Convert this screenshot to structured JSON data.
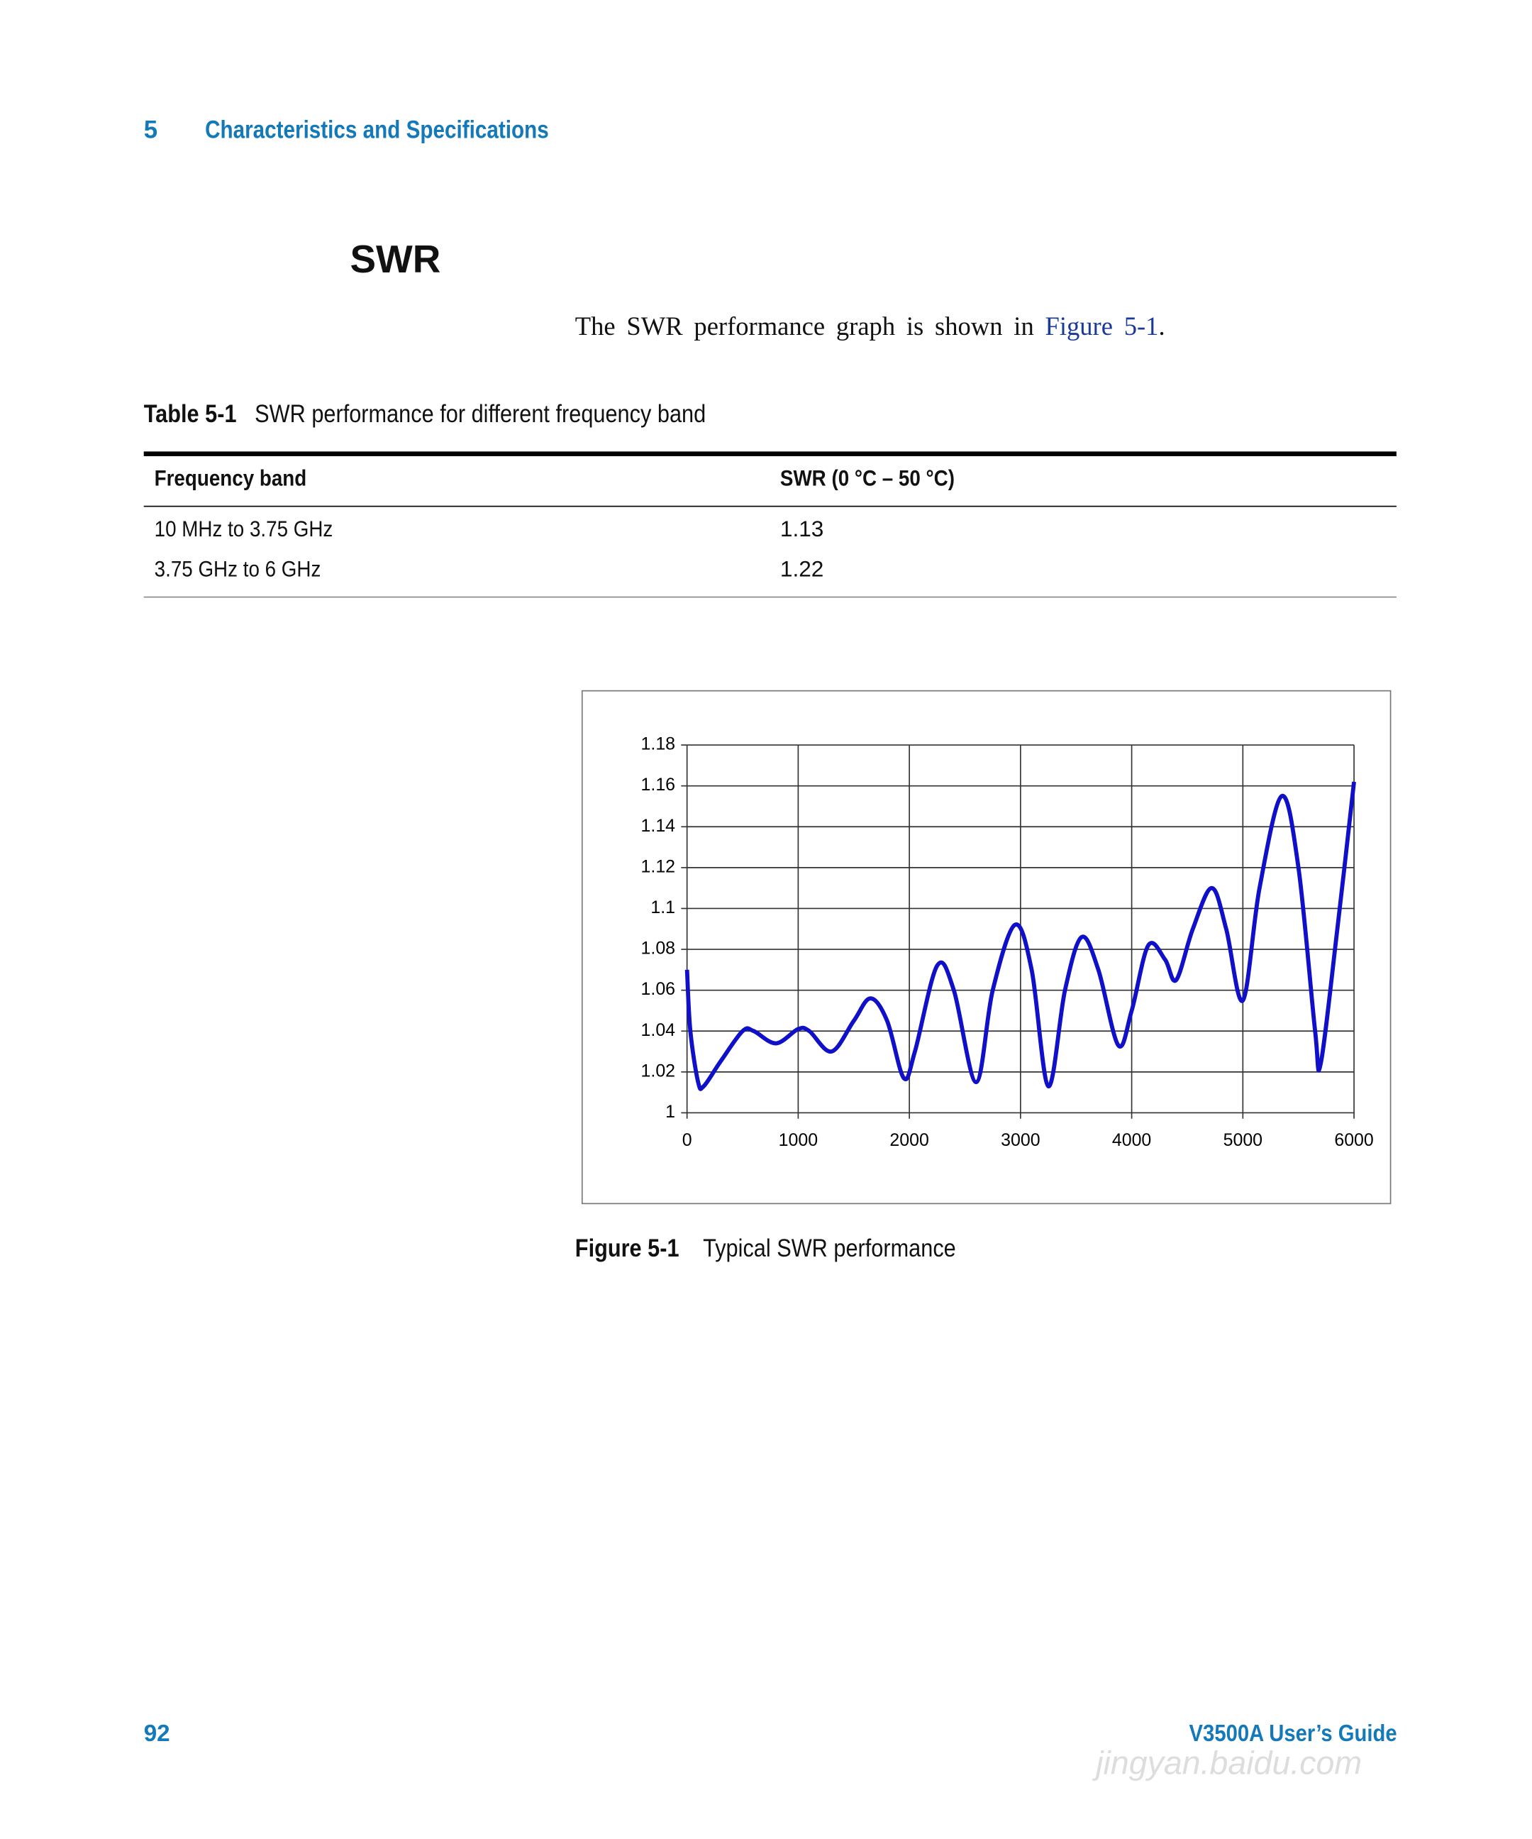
{
  "header": {
    "chapter": "5",
    "title": "Characteristics and Specifications"
  },
  "section_title": "SWR",
  "body": {
    "text": "The SWR performance graph is shown in ",
    "link": "Figure 5-1",
    "end": "."
  },
  "table": {
    "label": "Table 5-1",
    "caption": "SWR performance for different frequency band",
    "headers": [
      "Frequency band",
      "SWR (0 °C – 50 °C)"
    ],
    "rows": [
      [
        "10 MHz to 3.75 GHz",
        "1.13"
      ],
      [
        "3.75 GHz to 6 GHz",
        "1.22"
      ]
    ]
  },
  "figure": {
    "label": "Figure 5-1",
    "caption": "Typical SWR performance"
  },
  "chart_data": {
    "type": "line",
    "x": [
      0,
      30,
      100,
      150,
      300,
      500,
      600,
      800,
      1000,
      1100,
      1300,
      1500,
      1650,
      1800,
      1950,
      2050,
      2250,
      2400,
      2600,
      2750,
      2950,
      3100,
      3250,
      3400,
      3550,
      3700,
      3880,
      4000,
      4150,
      4300,
      4400,
      4550,
      4720,
      4850,
      5000,
      5150,
      5350,
      5500,
      5650,
      5700,
      5850,
      6000
    ],
    "series": [
      {
        "color": "#1010c8",
        "values": [
          1.07,
          1.04,
          1.015,
          1.013,
          1.025,
          1.04,
          1.04,
          1.034,
          1.041,
          1.04,
          1.03,
          1.045,
          1.056,
          1.045,
          1.017,
          1.03,
          1.072,
          1.06,
          1.015,
          1.06,
          1.092,
          1.07,
          1.013,
          1.06,
          1.086,
          1.07,
          1.033,
          1.05,
          1.082,
          1.075,
          1.065,
          1.09,
          1.11,
          1.09,
          1.055,
          1.11,
          1.155,
          1.12,
          1.04,
          1.024,
          1.09,
          1.162
        ]
      }
    ],
    "xlim": [
      0,
      6000
    ],
    "ylim": [
      1,
      1.18
    ],
    "xticks": [
      0,
      1000,
      2000,
      3000,
      4000,
      5000,
      6000
    ],
    "yticks": [
      1,
      1.02,
      1.04,
      1.06,
      1.08,
      1.1,
      1.12,
      1.14,
      1.16,
      1.18
    ],
    "grid": true
  },
  "footer": {
    "page": "92",
    "guide": "V3500A User’s Guide"
  },
  "watermark": "jingyan.baidu.com"
}
